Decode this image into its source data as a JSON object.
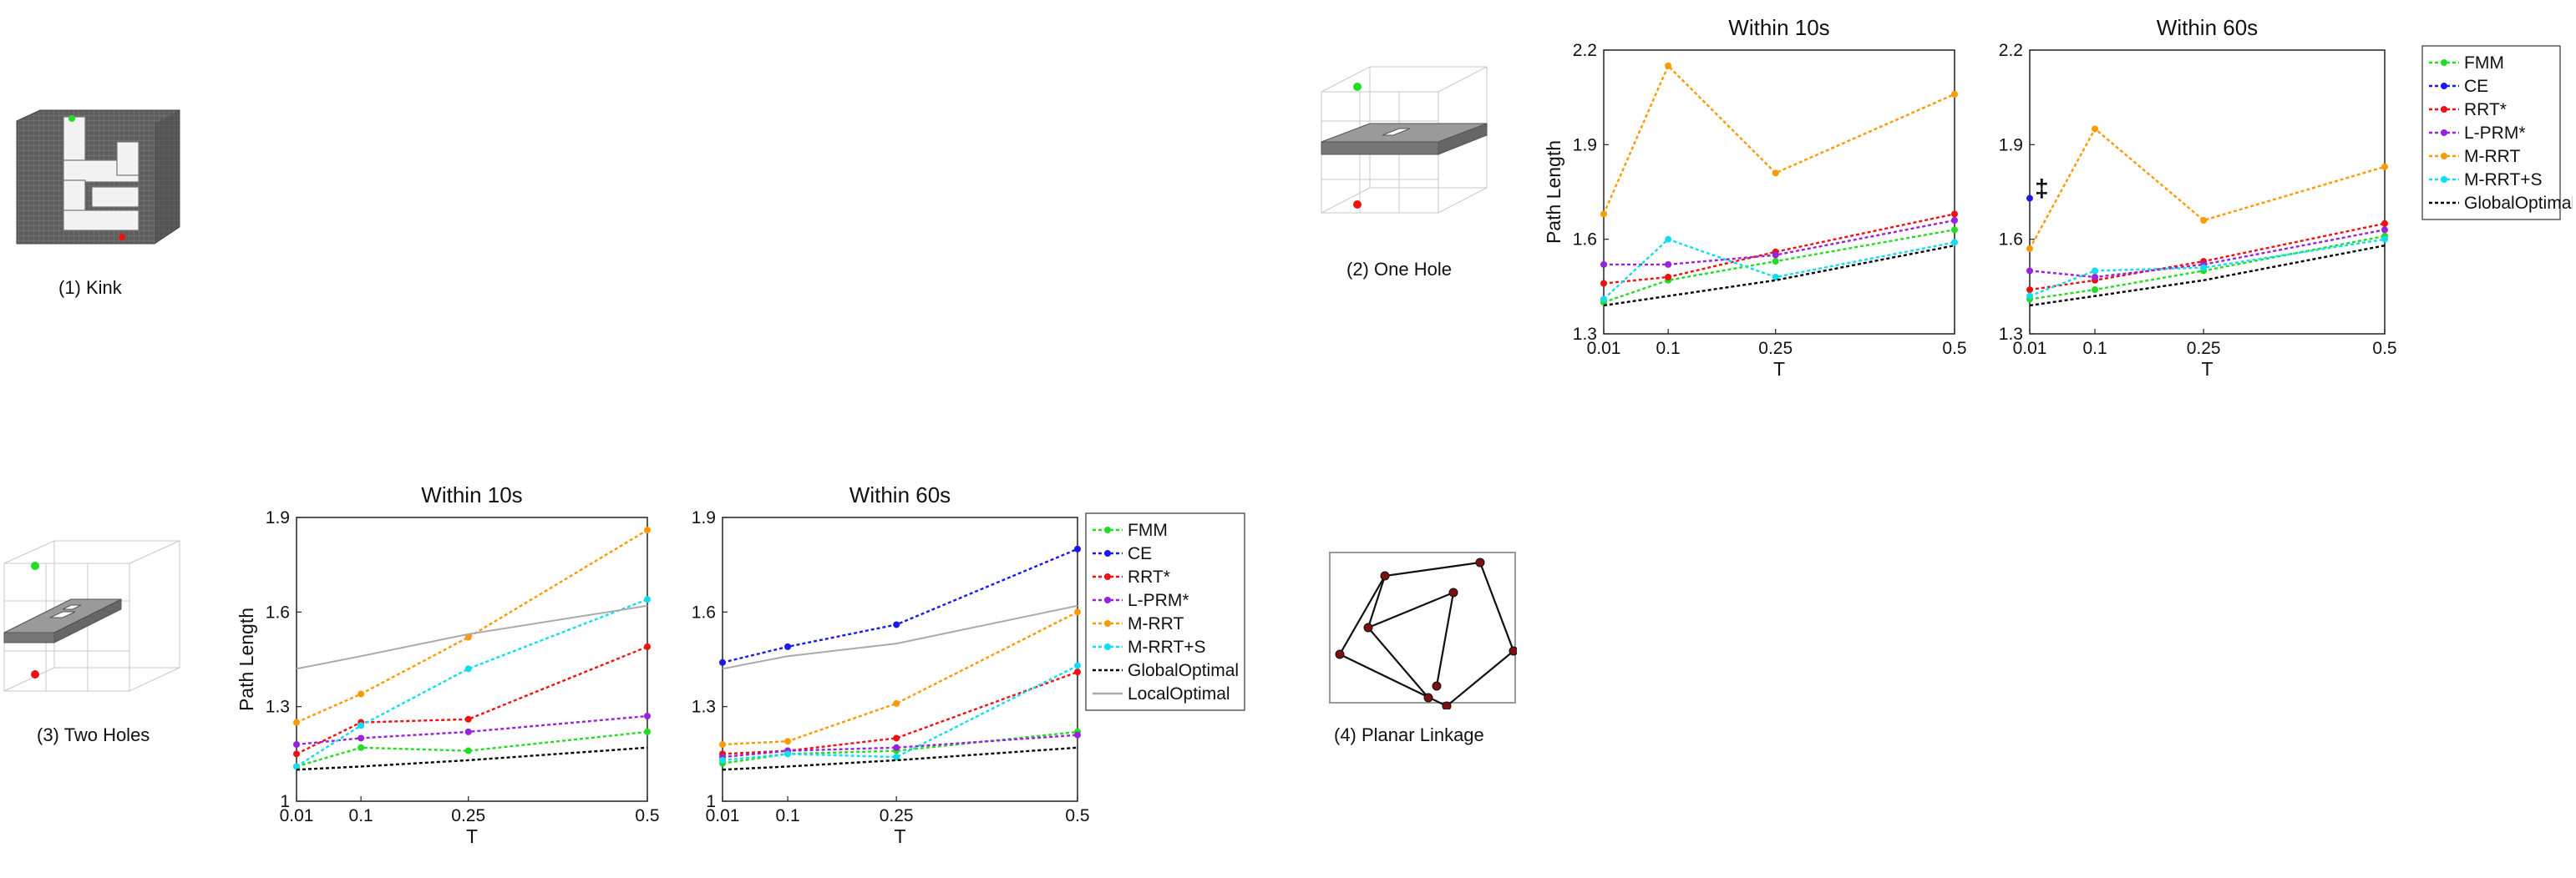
{
  "panels": [
    {
      "caption": "(1) Kink"
    },
    {
      "caption": "(2) One Hole"
    },
    {
      "caption": "(3) Two Holes"
    },
    {
      "caption": "(4) Planar Linkage"
    }
  ],
  "colors": {
    "FMM": "#22dd22",
    "CE": "#1a1aee",
    "RRT*": "#ee1111",
    "L-PRM*": "#9922dd",
    "M-RRT": "#ff9900",
    "M-RRT+S": "#11ddee",
    "GlobalOptimal": "#000000",
    "LocalOptimal": "#aaaaaa"
  },
  "chart_data": [
    {
      "type": "line",
      "title": "Within 10s",
      "xlabel": "T",
      "ylabel": "Path Length",
      "x": [
        0.01,
        0.1,
        0.25,
        0.5
      ],
      "xticks": [
        "0.01",
        "0.1",
        "0.25",
        "0.5"
      ],
      "yticks": [
        "1.3",
        "1.6",
        "1.9",
        "2.2"
      ],
      "ylim": [
        1.3,
        2.2
      ],
      "grid": false,
      "series": [
        {
          "name": "FMM",
          "values": [
            1.4,
            1.47,
            1.53,
            1.63
          ]
        },
        {
          "name": "RRT*",
          "values": [
            1.46,
            1.48,
            1.56,
            1.68
          ]
        },
        {
          "name": "L-PRM*",
          "values": [
            1.52,
            1.52,
            1.55,
            1.66
          ]
        },
        {
          "name": "M-RRT",
          "values": [
            1.68,
            2.15,
            1.81,
            2.06
          ]
        },
        {
          "name": "M-RRT+S",
          "values": [
            1.41,
            1.6,
            1.48,
            1.59
          ]
        },
        {
          "name": "GlobalOptimal",
          "values": [
            1.39,
            1.42,
            1.47,
            1.58
          ]
        }
      ]
    },
    {
      "type": "line",
      "title": "Within 60s",
      "xlabel": "T",
      "ylabel": "",
      "x": [
        0.01,
        0.1,
        0.25,
        0.5
      ],
      "xticks": [
        "0.01",
        "0.1",
        "0.25",
        "0.5"
      ],
      "yticks": [
        "1.3",
        "1.6",
        "1.9",
        "2.2"
      ],
      "ylim": [
        1.3,
        2.2
      ],
      "grid": false,
      "annotation": "‡",
      "series": [
        {
          "name": "FMM",
          "values": [
            1.41,
            1.44,
            1.5,
            1.61
          ]
        },
        {
          "name": "CE",
          "values": [
            1.73,
            null,
            null,
            null
          ]
        },
        {
          "name": "RRT*",
          "values": [
            1.44,
            1.47,
            1.53,
            1.65
          ]
        },
        {
          "name": "L-PRM*",
          "values": [
            1.5,
            1.48,
            1.52,
            1.63
          ]
        },
        {
          "name": "M-RRT",
          "values": [
            1.57,
            1.95,
            1.66,
            1.83
          ]
        },
        {
          "name": "M-RRT+S",
          "values": [
            1.42,
            1.5,
            1.51,
            1.6
          ]
        },
        {
          "name": "GlobalOptimal",
          "values": [
            1.39,
            1.42,
            1.47,
            1.58
          ]
        }
      ],
      "legend": [
        "FMM",
        "CE",
        "RRT*",
        "L-PRM*",
        "M-RRT",
        "M-RRT+S",
        "GlobalOptimal"
      ],
      "legend_position": "right"
    },
    {
      "type": "line",
      "title": "Within 10s",
      "xlabel": "T",
      "ylabel": "Path Length",
      "x": [
        0.01,
        0.1,
        0.25,
        0.5
      ],
      "xticks": [
        "0.01",
        "0.1",
        "0.25",
        "0.5"
      ],
      "yticks": [
        "1",
        "1.3",
        "1.6",
        "1.9"
      ],
      "ylim": [
        1.0,
        1.9
      ],
      "grid": false,
      "series": [
        {
          "name": "FMM",
          "values": [
            1.11,
            1.17,
            1.16,
            1.22
          ]
        },
        {
          "name": "RRT*",
          "values": [
            1.15,
            1.25,
            1.26,
            1.49
          ]
        },
        {
          "name": "L-PRM*",
          "values": [
            1.18,
            1.2,
            1.22,
            1.27
          ]
        },
        {
          "name": "M-RRT",
          "values": [
            1.25,
            1.34,
            1.52,
            1.86
          ]
        },
        {
          "name": "M-RRT+S",
          "values": [
            1.11,
            1.24,
            1.42,
            1.64
          ]
        },
        {
          "name": "GlobalOptimal",
          "values": [
            1.1,
            1.11,
            1.13,
            1.17
          ]
        },
        {
          "name": "LocalOptimal",
          "values": [
            1.42,
            1.46,
            1.53,
            1.62
          ]
        }
      ]
    },
    {
      "type": "line",
      "title": "Within 60s",
      "xlabel": "T",
      "ylabel": "",
      "x": [
        0.01,
        0.1,
        0.25,
        0.5
      ],
      "xticks": [
        "0.01",
        "0.1",
        "0.25",
        "0.5"
      ],
      "yticks": [
        "1",
        "1.3",
        "1.6",
        "1.9"
      ],
      "ylim": [
        1.0,
        1.9
      ],
      "grid": false,
      "series": [
        {
          "name": "FMM",
          "values": [
            1.12,
            1.15,
            1.16,
            1.22
          ]
        },
        {
          "name": "CE",
          "values": [
            1.44,
            1.49,
            1.56,
            1.8
          ]
        },
        {
          "name": "RRT*",
          "values": [
            1.15,
            1.16,
            1.2,
            1.41
          ]
        },
        {
          "name": "L-PRM*",
          "values": [
            1.14,
            1.16,
            1.17,
            1.21
          ]
        },
        {
          "name": "M-RRT",
          "values": [
            1.18,
            1.19,
            1.31,
            1.6
          ]
        },
        {
          "name": "M-RRT+S",
          "values": [
            1.13,
            1.15,
            1.14,
            1.43
          ]
        },
        {
          "name": "GlobalOptimal",
          "values": [
            1.1,
            1.11,
            1.13,
            1.17
          ]
        },
        {
          "name": "LocalOptimal",
          "values": [
            1.42,
            1.46,
            1.5,
            1.62
          ]
        }
      ],
      "legend": [
        "FMM",
        "CE",
        "RRT*",
        "L-PRM*",
        "M-RRT",
        "M-RRT+S",
        "GlobalOptimal",
        "LocalOptimal"
      ],
      "legend_position": "right"
    }
  ]
}
